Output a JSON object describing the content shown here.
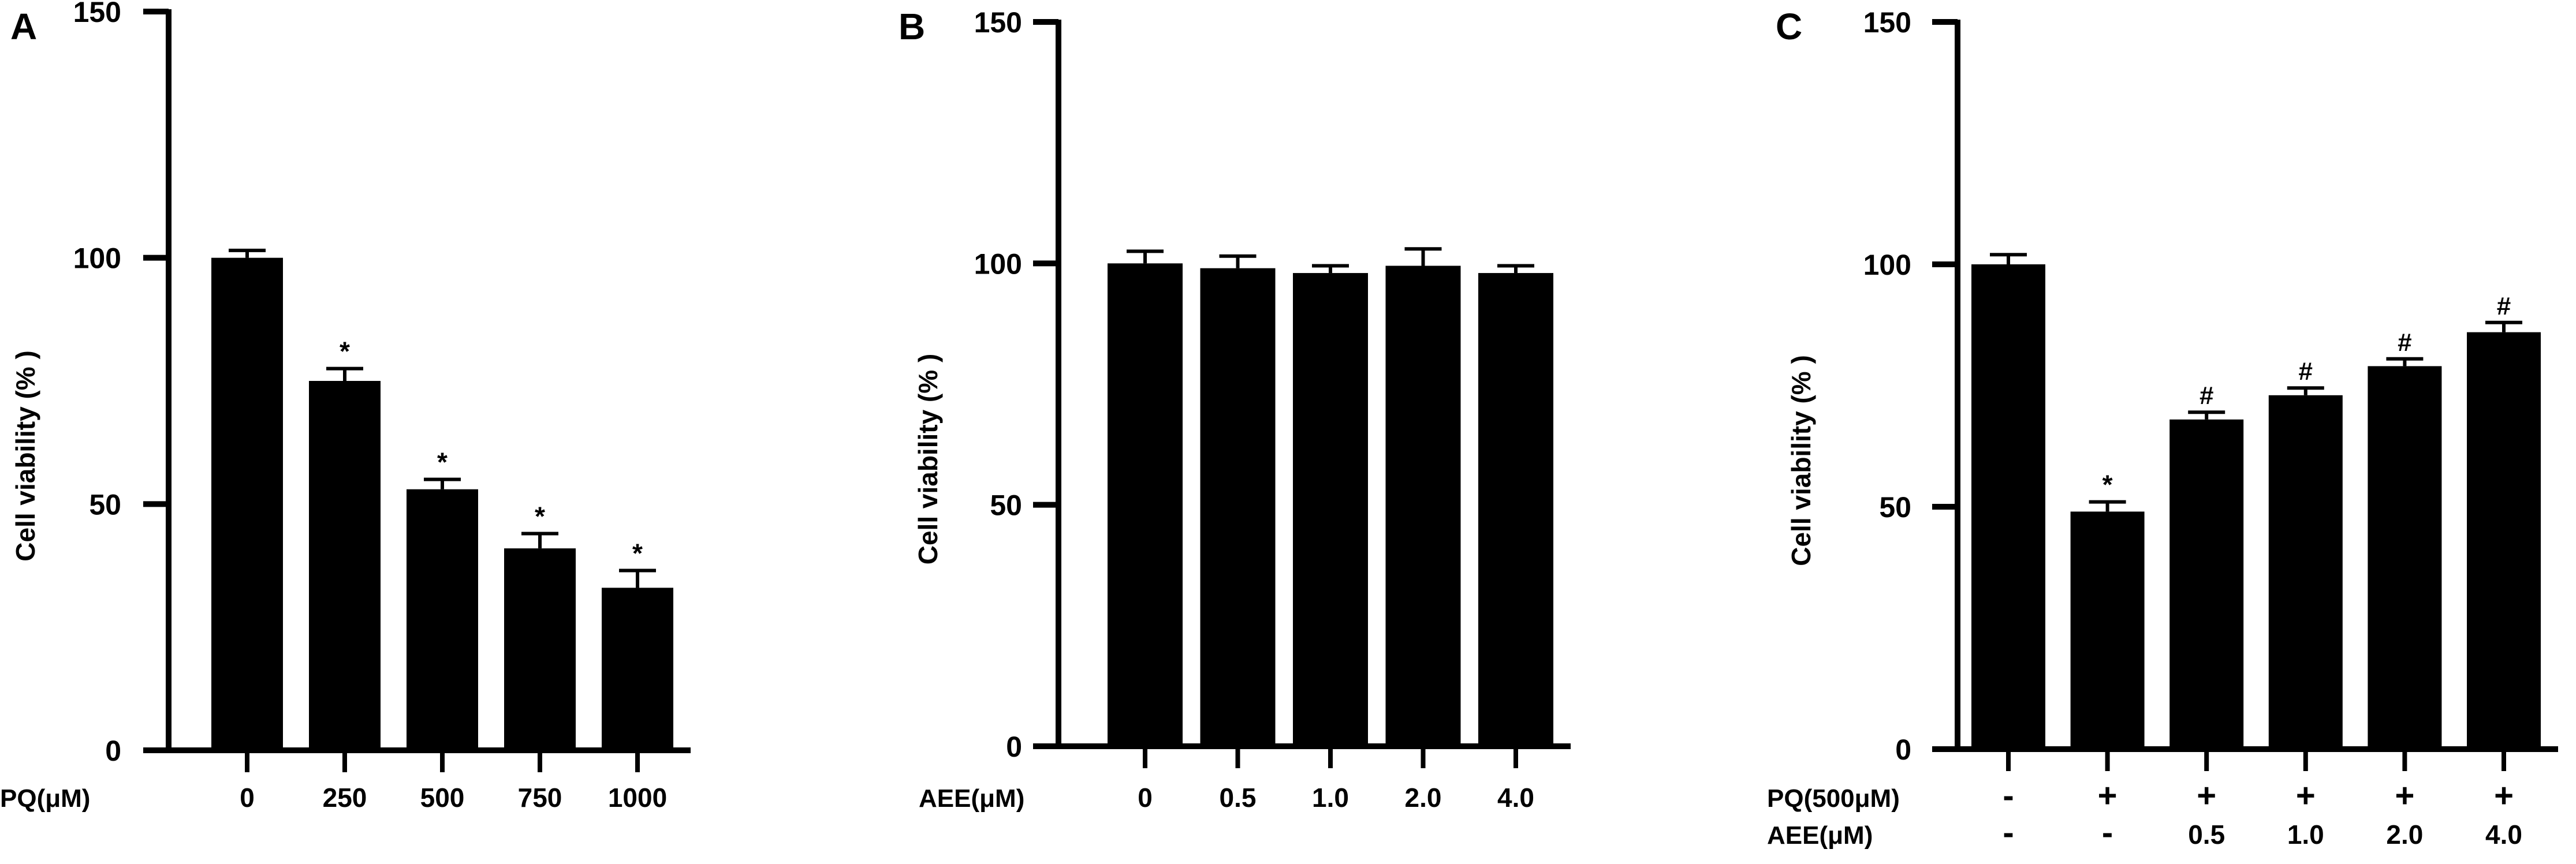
{
  "colors": {
    "bar": "#000000",
    "axis": "#000000",
    "background": "#ffffff"
  },
  "chart_data": [
    {
      "panel": "A",
      "type": "bar",
      "ylabel": "Cell viability (% )",
      "ylim": [
        0,
        150
      ],
      "yticks": [
        "0",
        "50",
        "100",
        "150"
      ],
      "row_labels": [
        "PQ(μM)"
      ],
      "categories": [
        [
          "0"
        ],
        [
          "250"
        ],
        [
          "500"
        ],
        [
          "750"
        ],
        [
          "1000"
        ]
      ],
      "values": [
        100,
        75,
        53,
        41,
        33
      ],
      "errors": [
        1.5,
        2.5,
        2.0,
        3.0,
        3.5
      ],
      "annotations": [
        "",
        "*",
        "*",
        "*",
        "*"
      ]
    },
    {
      "panel": "B",
      "type": "bar",
      "ylabel": "Cell viability (% )",
      "ylim": [
        0,
        150
      ],
      "yticks": [
        "0",
        "50",
        "100",
        "150"
      ],
      "row_labels": [
        "AEE(μM)"
      ],
      "categories": [
        [
          "0"
        ],
        [
          "0.5"
        ],
        [
          "1.0"
        ],
        [
          "2.0"
        ],
        [
          "4.0"
        ]
      ],
      "values": [
        100,
        99,
        98,
        99.5,
        98
      ],
      "errors": [
        2.5,
        2.5,
        1.5,
        3.5,
        1.5
      ],
      "annotations": [
        "",
        "",
        "",
        "",
        ""
      ]
    },
    {
      "panel": "C",
      "type": "bar",
      "ylabel": "Cell viability (% )",
      "ylim": [
        0,
        150
      ],
      "yticks": [
        "0",
        "50",
        "100",
        "150"
      ],
      "row_labels": [
        "PQ(500μM)",
        "AEE(μM)"
      ],
      "categories": [
        [
          "-",
          "-"
        ],
        [
          "+",
          "-"
        ],
        [
          "+",
          "0.5"
        ],
        [
          "+",
          "1.0"
        ],
        [
          "+",
          "2.0"
        ],
        [
          "+",
          "4.0"
        ]
      ],
      "values": [
        100,
        49,
        68,
        73,
        79,
        86
      ],
      "errors": [
        2.0,
        2.0,
        1.5,
        1.5,
        1.5,
        2.0
      ],
      "annotations": [
        "",
        "*",
        "#",
        "#",
        "#",
        "#"
      ]
    }
  ]
}
